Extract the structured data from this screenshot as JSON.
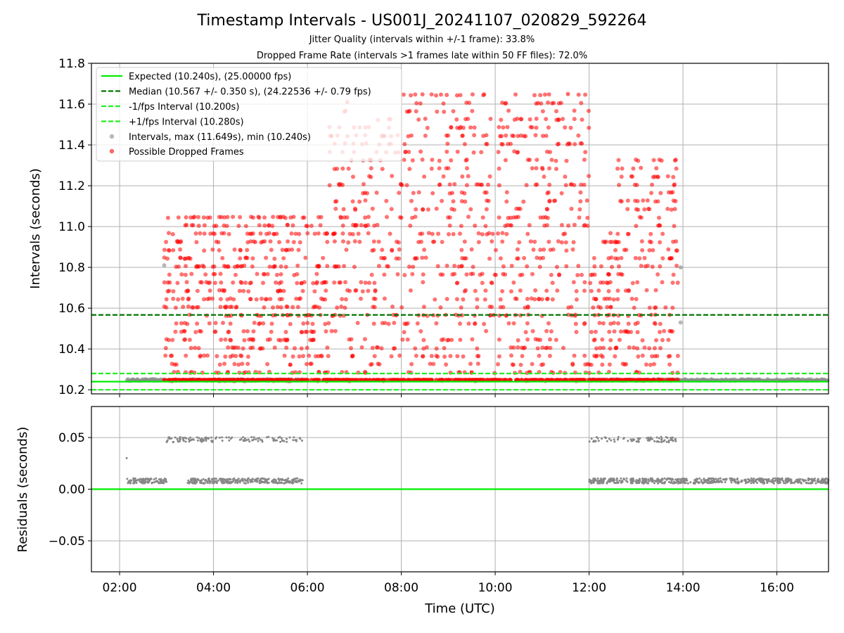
{
  "chart_data": [
    {
      "type": "scatter",
      "title": "Timestamp Intervals - US001J_20241107_020829_592264",
      "subtitle_lines": [
        "Jitter Quality (intervals within +/-1 frame): 33.8%",
        "Dropped Frame Rate (intervals >1 frames late within 50 FF files): 72.0%"
      ],
      "xlabel": "",
      "ylabel": "Intervals (seconds)",
      "xlim_hours": [
        1.4,
        17.1
      ],
      "ylim": [
        10.18,
        11.8
      ],
      "yticks": [
        10.2,
        10.4,
        10.6,
        10.8,
        11.0,
        11.2,
        11.4,
        11.6,
        11.8
      ],
      "ytick_labels": [
        "10.2",
        "10.4",
        "10.6",
        "10.8",
        "11.0",
        "11.2",
        "11.4",
        "11.6",
        "11.8"
      ],
      "xticks_hours": [
        2,
        4,
        6,
        8,
        10,
        12,
        14,
        16
      ],
      "grid": true,
      "legend_placement": "upper-left",
      "legend": [
        "Expected (10.240s), (25.00000 fps)",
        "Median (10.567 +/- 0.350 s), (24.22536 +/- 0.79 fps)",
        "-1/fps Interval (10.200s)",
        "+1/fps Interval (10.280s)",
        "Intervals, max (11.649s), min (10.240s)",
        "Possible Dropped Frames"
      ],
      "reference_lines": {
        "expected": 10.24,
        "median": 10.567,
        "minus_one_fps": 10.2,
        "plus_one_fps": 10.28
      },
      "intervals_summary": {
        "max": 11.649,
        "min": 10.24
      },
      "colors": {
        "expected": "#00ee00",
        "median": "#007700",
        "fps_bounds": "#22ee22",
        "intervals": "#888888",
        "dropped": "#ff0000",
        "grid": "#b0b0b0"
      },
      "dropped_frame_segments": [
        {
          "start_hours": 2.95,
          "end_hours": 3.45,
          "max": 11.05
        },
        {
          "start_hours": 3.45,
          "end_hours": 5.95,
          "max": 11.05
        },
        {
          "start_hours": 5.95,
          "end_hours": 6.45,
          "max": 11.05
        },
        {
          "start_hours": 6.45,
          "end_hours": 7.7,
          "max": 11.6
        },
        {
          "start_hours": 7.7,
          "end_hours": 12.0,
          "max": 11.65
        },
        {
          "start_hours": 12.0,
          "end_hours": 12.6,
          "max": 11.0
        },
        {
          "start_hours": 12.6,
          "end_hours": 13.9,
          "max": 11.35
        }
      ]
    },
    {
      "type": "scatter",
      "xlabel": "Time (UTC)",
      "ylabel": "Residuals (seconds)",
      "xlim_hours": [
        1.4,
        17.1
      ],
      "ylim": [
        -0.08,
        0.08
      ],
      "yticks": [
        -0.05,
        0.0,
        0.05
      ],
      "ytick_labels": [
        "−0.05",
        "0.00",
        "0.05"
      ],
      "xticks_hours": [
        2,
        4,
        6,
        8,
        10,
        12,
        14,
        16
      ],
      "xtick_labels": [
        "02:00",
        "04:00",
        "06:00",
        "08:00",
        "10:00",
        "12:00",
        "14:00",
        "16:00"
      ],
      "reference_line": 0.0,
      "grid": true,
      "residual_bands": [
        {
          "start_hours": 2.15,
          "end_hours": 3.0,
          "value": 0.008
        },
        {
          "start_hours": 3.45,
          "end_hours": 5.9,
          "value": 0.008
        },
        {
          "start_hours": 3.0,
          "end_hours": 5.9,
          "value": 0.048
        },
        {
          "start_hours": 12.0,
          "end_hours": 13.85,
          "value": 0.008
        },
        {
          "start_hours": 12.0,
          "end_hours": 13.85,
          "value": 0.048
        },
        {
          "start_hours": 13.85,
          "end_hours": 17.1,
          "value": 0.008
        }
      ]
    }
  ]
}
